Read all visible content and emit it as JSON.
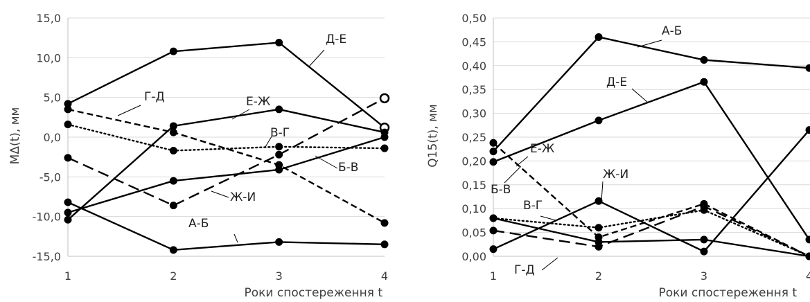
{
  "chart_data": [
    {
      "type": "line",
      "ylabel": "MΔ(t), мм",
      "xlabel": "Роки спостереження t",
      "x": [
        1,
        2,
        3,
        4
      ],
      "xticks": [
        "1",
        "2",
        "3",
        "4"
      ],
      "ylim": [
        -15,
        15
      ],
      "yticks": [
        "15,0",
        "10,0",
        "5,0",
        "0,0",
        "-5,0",
        "-10,0",
        "-15,0"
      ],
      "grid": true,
      "series": [
        {
          "name": "А-Б",
          "values": [
            -8.2,
            -14.2,
            -13.2,
            -13.5
          ],
          "style": "solid"
        },
        {
          "name": "Д-Е",
          "values": [
            4.2,
            10.8,
            11.9,
            1.2
          ],
          "style": "solid",
          "open_last": true
        },
        {
          "name": "Е-Ж",
          "values": [
            -10.4,
            1.4,
            3.5,
            0.6
          ],
          "style": "solid"
        },
        {
          "name": "Б-В",
          "values": [
            -9.5,
            -5.5,
            -4.1,
            0.0
          ],
          "style": "solid"
        },
        {
          "name": "Г-Д",
          "values": [
            3.5,
            0.6,
            -3.5,
            -10.8
          ],
          "style": "dashed"
        },
        {
          "name": "Ж-И",
          "values": [
            -2.6,
            -8.6,
            -2.2,
            4.9
          ],
          "style": "longdash",
          "open_last": true
        },
        {
          "name": "В-Г",
          "values": [
            1.6,
            -1.7,
            -1.2,
            -1.4
          ],
          "style": "dotted"
        }
      ]
    },
    {
      "type": "line",
      "ylabel": "Q15(t), мм",
      "xlabel": "Роки спостереження t",
      "x": [
        1,
        2,
        3,
        4
      ],
      "xticks": [
        "1",
        "2",
        "3",
        "4"
      ],
      "ylim": [
        0,
        0.5
      ],
      "yticks": [
        "0,50",
        "0,45",
        "0,40",
        "0,35",
        "0,30",
        "0,25",
        "0,20",
        "0,15",
        "0,10",
        "0,05",
        "0,00"
      ],
      "grid": true,
      "series": [
        {
          "name": "А-Б",
          "values": [
            0.22,
            0.46,
            0.412,
            0.395
          ],
          "style": "solid"
        },
        {
          "name": "Д-Е",
          "values": [
            0.198,
            0.285,
            0.366,
            0.035
          ],
          "style": "solid"
        },
        {
          "name": "Ж-И",
          "values": [
            0.015,
            0.116,
            0.01,
            0.265
          ],
          "style": "solid"
        },
        {
          "name": "Б-В",
          "values": [
            0.08,
            0.03,
            0.035,
            0.0
          ],
          "style": "solid"
        },
        {
          "name": "Е-Ж",
          "values": [
            0.238,
            0.04,
            0.11,
            0.0
          ],
          "style": "dashed"
        },
        {
          "name": "Г-Д",
          "values": [
            0.054,
            0.02,
            0.105,
            0.0
          ],
          "style": "longdash"
        },
        {
          "name": "В-Г",
          "values": [
            0.08,
            0.06,
            0.097,
            0.0
          ],
          "style": "dotted"
        }
      ]
    }
  ]
}
